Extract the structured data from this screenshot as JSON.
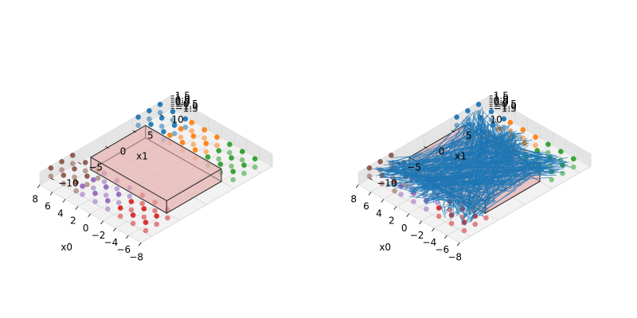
{
  "chart_data": [
    {
      "type": "scatter3d",
      "title": "",
      "xlabel": "x0",
      "ylabel": "x1",
      "zlabel": "",
      "xlim": [
        -8,
        8
      ],
      "ylim": [
        -12,
        12
      ],
      "zlim": [
        -1.5,
        1.5
      ],
      "x_ticks": [
        "−8",
        "−6",
        "−4",
        "−2",
        "0",
        "2",
        "4",
        "6",
        "8"
      ],
      "y_ticks": [
        "−10",
        "−5",
        "0",
        "5",
        "10"
      ],
      "z_ticks": [
        "−1.5",
        "−1.0",
        "−0.5",
        "0.0",
        "0.5",
        "1.0",
        "1.5"
      ],
      "grid": true,
      "box": {
        "x": [
          -6,
          6
        ],
        "y": [
          -5,
          5
        ],
        "z": [
          -1.5,
          1.5
        ],
        "face": "#e8b4b4",
        "edge": "#333333"
      },
      "series": [
        {
          "color": "#1f77b4",
          "x": [
            4,
            8
          ],
          "y": [
            6,
            10
          ],
          "z": [
            -1,
            1
          ]
        },
        {
          "color": "#ff7f0e",
          "x": [
            -1,
            3
          ],
          "y": [
            6,
            10
          ],
          "z": [
            -1,
            1
          ]
        },
        {
          "color": "#2ca02c",
          "x": [
            -7,
            -3
          ],
          "y": [
            6,
            10
          ],
          "z": [
            -1,
            1
          ]
        },
        {
          "color": "#d62728",
          "x": [
            -7,
            -3
          ],
          "y": [
            -10,
            -6
          ],
          "z": [
            -1,
            1
          ]
        },
        {
          "color": "#9467bd",
          "x": [
            -1,
            3
          ],
          "y": [
            -10,
            -6
          ],
          "z": [
            -1,
            1
          ]
        },
        {
          "color": "#8c564b",
          "x": [
            4,
            8
          ],
          "y": [
            -10,
            -6
          ],
          "z": [
            -1,
            1
          ]
        }
      ],
      "trajectories": false
    },
    {
      "type": "scatter3d",
      "title": "",
      "xlabel": "x0",
      "ylabel": "x1",
      "zlabel": "",
      "xlim": [
        -8,
        8
      ],
      "ylim": [
        -12,
        12
      ],
      "zlim": [
        -1.5,
        1.5
      ],
      "x_ticks": [
        "−8",
        "−6",
        "−4",
        "−2",
        "0",
        "2",
        "4",
        "6",
        "8"
      ],
      "y_ticks": [
        "−10",
        "−5",
        "0",
        "5",
        "10"
      ],
      "z_ticks": [
        "−1.5",
        "−1.0",
        "−0.5",
        "0.0",
        "0.5",
        "1.0",
        "1.5"
      ],
      "grid": true,
      "box": {
        "x": [
          -6,
          6
        ],
        "y": [
          -5,
          5
        ],
        "z": [
          -1.5,
          1.5
        ],
        "face": "#e8b4b4",
        "edge": "#333333"
      },
      "series": [
        {
          "color": "#1f77b4",
          "x": [
            4,
            8
          ],
          "y": [
            6,
            10
          ],
          "z": [
            -1,
            1
          ]
        },
        {
          "color": "#ff7f0e",
          "x": [
            -1,
            3
          ],
          "y": [
            6,
            10
          ],
          "z": [
            -1,
            1
          ]
        },
        {
          "color": "#2ca02c",
          "x": [
            -7,
            -3
          ],
          "y": [
            6,
            10
          ],
          "z": [
            -1,
            1
          ]
        },
        {
          "color": "#d62728",
          "x": [
            -7,
            -3
          ],
          "y": [
            -10,
            -6
          ],
          "z": [
            -1,
            1
          ]
        },
        {
          "color": "#9467bd",
          "x": [
            -1,
            3
          ],
          "y": [
            -10,
            -6
          ],
          "z": [
            -1,
            1
          ]
        },
        {
          "color": "#8c564b",
          "x": [
            4,
            8
          ],
          "y": [
            -10,
            -6
          ],
          "z": [
            -1,
            1
          ]
        }
      ],
      "trajectories": true,
      "trajectory_color": "#1f77b4"
    }
  ]
}
